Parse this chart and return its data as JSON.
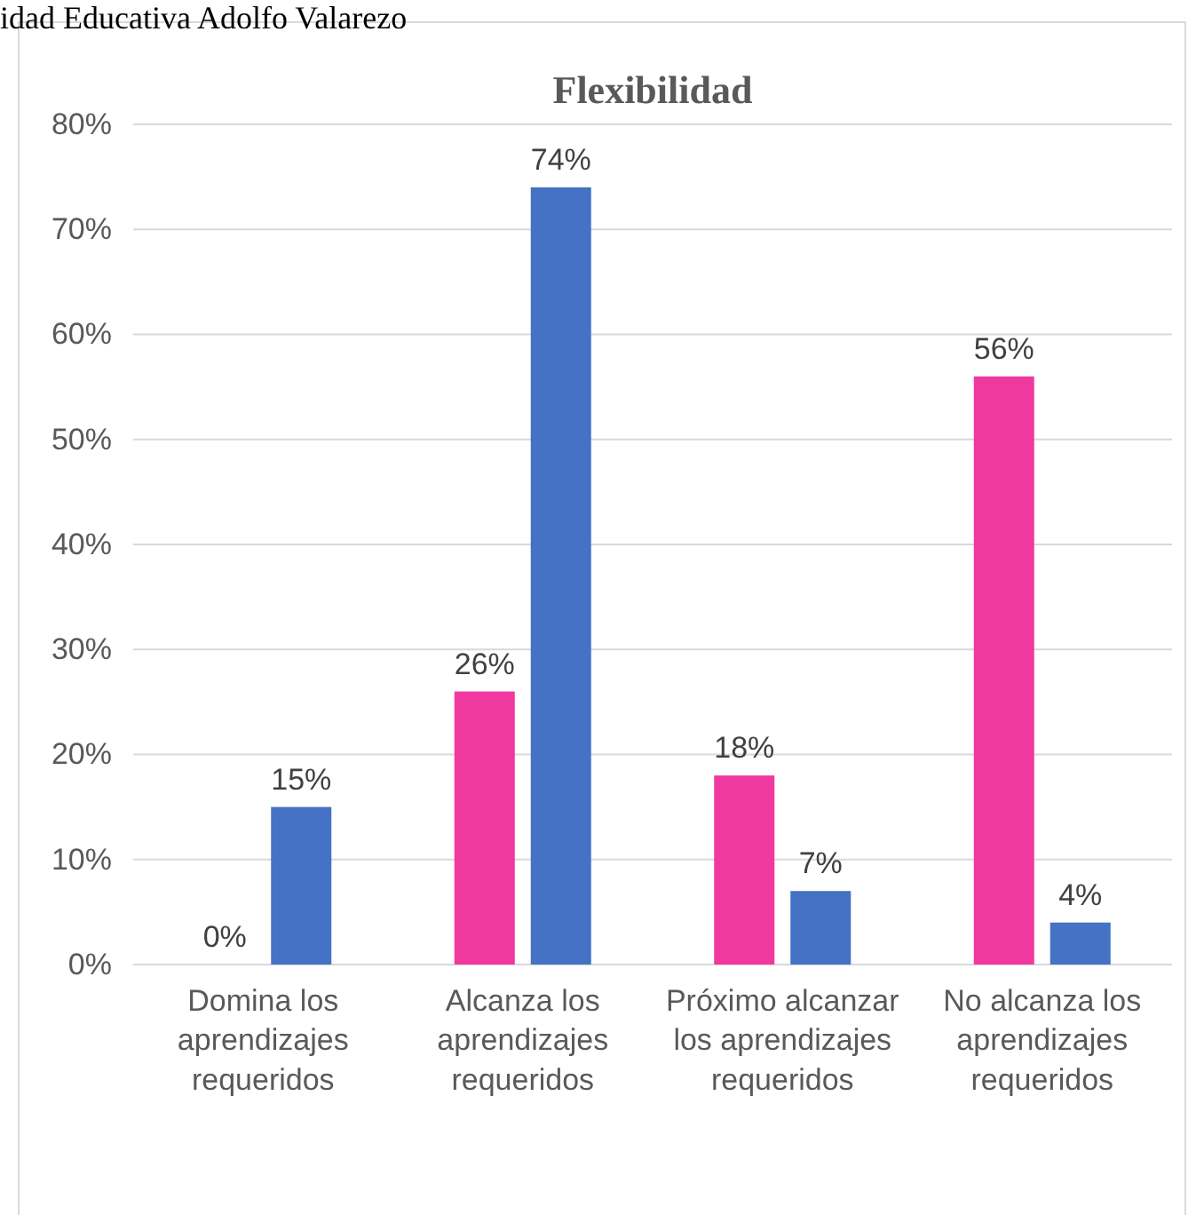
{
  "chart_data": {
    "type": "bar",
    "title": "Flexibilidad",
    "annotations": [
      "idad Educativa Adolfo Valarezo"
    ],
    "categories": [
      "Domina los aprendizajes requeridos",
      "Alcanza los aprendizajes requeridos",
      "Próximo alcanzar los aprendizajes requeridos",
      "No alcanza los aprendizajes requeridos"
    ],
    "series": [
      {
        "color": "#f0399f",
        "values": [
          0,
          26,
          18,
          56
        ]
      },
      {
        "color": "#4472c4",
        "values": [
          15,
          74,
          7,
          4
        ]
      }
    ],
    "ylim": [
      0,
      80
    ],
    "yticks": [
      {
        "value": 0,
        "label": "0%"
      },
      {
        "value": 10,
        "label": "10%"
      },
      {
        "value": 20,
        "label": "20%"
      },
      {
        "value": 30,
        "label": "30%"
      },
      {
        "value": 40,
        "label": "40%"
      },
      {
        "value": 50,
        "label": "50%"
      },
      {
        "value": 60,
        "label": "60%"
      },
      {
        "value": 70,
        "label": "70%"
      },
      {
        "value": 80,
        "label": "80%"
      }
    ],
    "value_labels": [
      [
        "0%",
        "26%",
        "18%",
        "56%"
      ],
      [
        "15%",
        "74%",
        "7%",
        "4%"
      ]
    ],
    "grid": "y"
  }
}
